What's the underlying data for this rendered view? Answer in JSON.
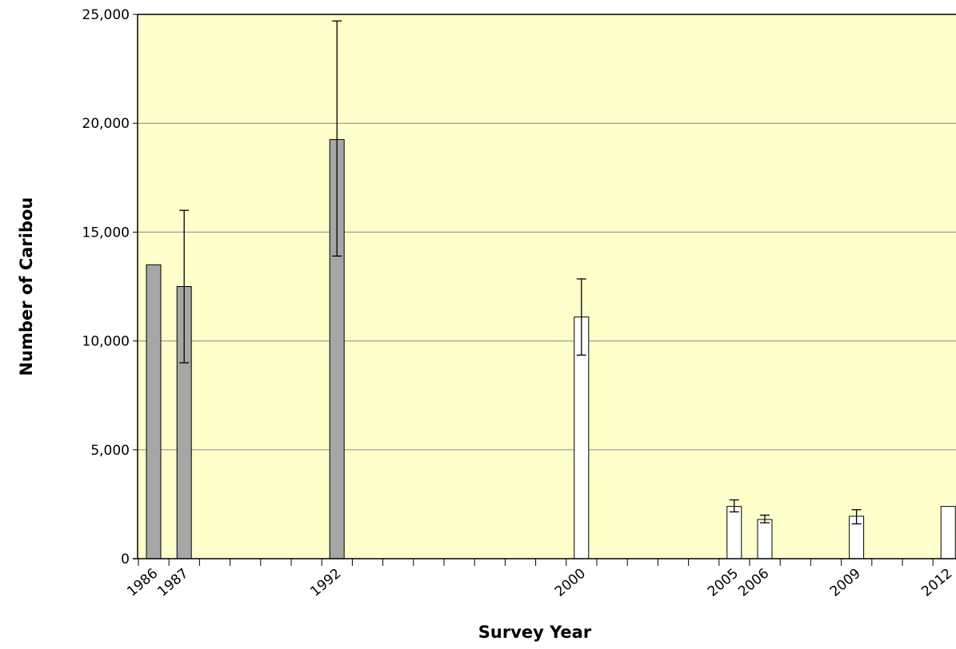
{
  "chart_data": {
    "type": "bar",
    "xlabel": "Survey Year",
    "ylabel": "Number of Caribou",
    "x_range": [
      1986,
      2012
    ],
    "ylim": [
      0,
      25000
    ],
    "y_ticks": [
      0,
      5000,
      10000,
      15000,
      20000,
      25000
    ],
    "y_tick_labels": [
      "0",
      "5,000",
      "10,000",
      "15,000",
      "20,000",
      "25,000"
    ],
    "x_tick_labels": [
      "1986",
      "1987",
      "1992",
      "2000",
      "2005",
      "2006",
      "2009",
      "2012"
    ],
    "grid": true,
    "legend": "none",
    "colors": {
      "plot_background": "#ffffcc",
      "gray_bar": "#a6a6a6",
      "white_bar": "#ffffff",
      "outline": "#000000",
      "gridline": "#8c8c8c"
    },
    "bars": [
      {
        "year": 1986,
        "value": 13500,
        "fill": "gray"
      },
      {
        "year": 1987,
        "value": 12500,
        "fill": "gray",
        "error_low": 9000,
        "error_high": 16000
      },
      {
        "year": 1992,
        "value": 19250,
        "fill": "gray",
        "error_low": 13900,
        "error_high": 24700
      },
      {
        "year": 2000,
        "value": 11100,
        "fill": "white",
        "error_low": 9350,
        "error_high": 12850
      },
      {
        "year": 2005,
        "value": 2400,
        "fill": "white",
        "error_low": 2150,
        "error_high": 2700
      },
      {
        "year": 2006,
        "value": 1800,
        "fill": "white",
        "error_low": 1650,
        "error_high": 2000
      },
      {
        "year": 2009,
        "value": 1950,
        "fill": "white",
        "error_low": 1600,
        "error_high": 2250
      },
      {
        "year": 2012,
        "value": 2400,
        "fill": "white"
      }
    ]
  }
}
